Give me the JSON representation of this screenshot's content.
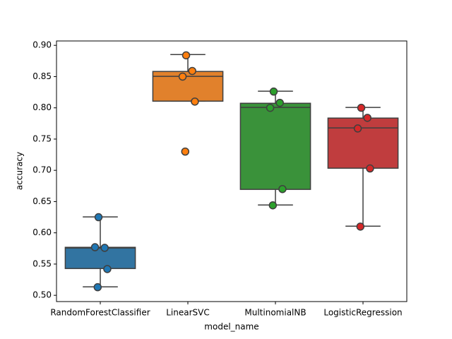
{
  "chart_data": {
    "type": "box",
    "x_label": "model_name",
    "y_label": "accuracy",
    "categories": [
      "RandomForestClassifier",
      "LinearSVC",
      "MultinomialNB",
      "LogisticRegression"
    ],
    "boxes": [
      {
        "whislo": 0.5136,
        "q1": 0.5429,
        "med": 0.5757,
        "q3": 0.5768,
        "whishi": 0.6254
      },
      {
        "whislo": 0.8107,
        "q1": 0.8107,
        "med": 0.8503,
        "q3": 0.8582,
        "whishi": 0.8853
      },
      {
        "whislo": 0.6446,
        "q1": 0.6695,
        "med": 0.8006,
        "q3": 0.8073,
        "whishi": 0.8266
      },
      {
        "whislo": 0.6107,
        "q1": 0.7034,
        "med": 0.7678,
        "q3": 0.7836,
        "whishi": 0.8006
      }
    ],
    "points": [
      [
        0.625,
        0.576,
        0.577,
        0.542,
        0.513
      ],
      [
        0.884,
        0.859,
        0.85,
        0.81,
        0.73
      ],
      [
        0.826,
        0.808,
        0.8,
        0.67,
        0.644
      ],
      [
        0.8,
        0.784,
        0.767,
        0.703,
        0.61
      ]
    ],
    "box_colors": [
      "#3274a1",
      "#e1812c",
      "#3a923a",
      "#c03d3e"
    ],
    "point_colors": [
      "#1f77b4",
      "#ff7f0e",
      "#2ca02c",
      "#d62728"
    ],
    "ylim": [
      0.49,
      0.907
    ],
    "yticks": [
      {
        "value": 0.5,
        "label": "0.50"
      },
      {
        "value": 0.55,
        "label": "0.55"
      },
      {
        "value": 0.6,
        "label": "0.60"
      },
      {
        "value": 0.65,
        "label": "0.65"
      },
      {
        "value": 0.7,
        "label": "0.70"
      },
      {
        "value": 0.75,
        "label": "0.75"
      },
      {
        "value": 0.8,
        "label": "0.80"
      },
      {
        "value": 0.85,
        "label": "0.85"
      },
      {
        "value": 0.9,
        "label": "0.90"
      }
    ]
  }
}
